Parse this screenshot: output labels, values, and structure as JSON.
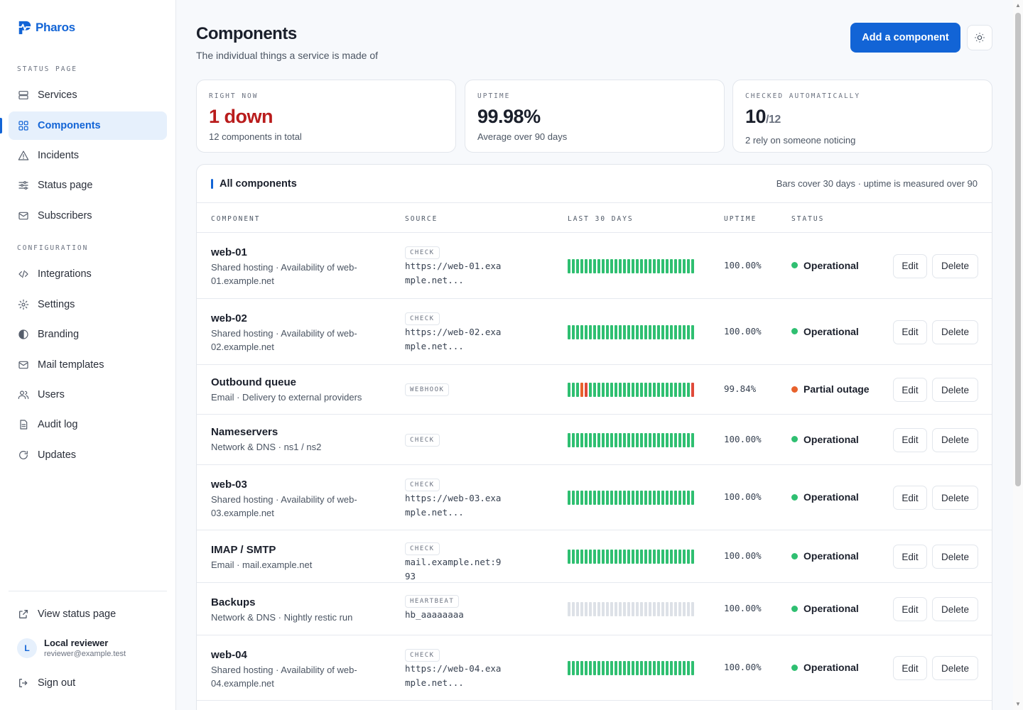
{
  "app": {
    "name": "Pharos"
  },
  "colors": {
    "accent": "#1264d6",
    "up": "#2fbf71",
    "degraded": "#e8622c",
    "down": "#e04a3a",
    "nodata": "#dde1e7"
  },
  "sidebar": {
    "section_status": "STATUS PAGE",
    "section_config": "CONFIGURATION",
    "items": [
      {
        "label": "Services",
        "icon": "server-icon"
      },
      {
        "label": "Components",
        "icon": "grid-icon",
        "active": true
      },
      {
        "label": "Incidents",
        "icon": "warning-icon"
      },
      {
        "label": "Status page",
        "icon": "sliders-icon"
      },
      {
        "label": "Subscribers",
        "icon": "mail-icon"
      }
    ],
    "config_items": [
      {
        "label": "Integrations",
        "icon": "code-icon"
      },
      {
        "label": "Settings",
        "icon": "gear-icon"
      },
      {
        "label": "Branding",
        "icon": "contrast-icon"
      },
      {
        "label": "Mail templates",
        "icon": "mail-icon"
      },
      {
        "label": "Users",
        "icon": "users-icon"
      },
      {
        "label": "Audit log",
        "icon": "document-icon"
      },
      {
        "label": "Updates",
        "icon": "refresh-icon"
      }
    ],
    "view_status": "View status page",
    "user": {
      "initial": "L",
      "name": "Local reviewer",
      "email": "reviewer@example.test"
    },
    "sign_out": "Sign out"
  },
  "header": {
    "title": "Components",
    "subtitle": "The individual things a service is made of",
    "add_button": "Add a component"
  },
  "stats": [
    {
      "label": "RIGHT NOW",
      "value": "1 down",
      "desc": "12 components in total"
    },
    {
      "label": "UPTIME",
      "value": "99.98%",
      "desc": "Average over 90 days"
    },
    {
      "label": "CHECKED AUTOMATICALLY",
      "value": "10",
      "value_suffix": "/12",
      "desc": "2 rely on someone noticing"
    }
  ],
  "table": {
    "title": "All components",
    "note": "Bars cover 30 days · uptime is measured over 90",
    "columns": [
      "COMPONENT",
      "SOURCE",
      "LAST 30 DAYS",
      "UPTIME",
      "STATUS"
    ],
    "edit_label": "Edit",
    "delete_label": "Delete",
    "rows": [
      {
        "name": "web-01",
        "desc": "Shared hosting · Availability of web-01.example.net",
        "badge": "CHECK",
        "source": "https://web-01.example.net...",
        "uptime": "100.00%",
        "status": "Operational",
        "status_color": "#2fbf71",
        "bars": "uuuuuuuuuuuuuuuuuuuuuuuuuuuuuu"
      },
      {
        "name": "web-02",
        "desc": "Shared hosting · Availability of web-02.example.net",
        "badge": "CHECK",
        "source": "https://web-02.example.net...",
        "uptime": "100.00%",
        "status": "Operational",
        "status_color": "#2fbf71",
        "bars": "uuuuuuuuuuuuuuuuuuuuuuuuuuuuuu"
      },
      {
        "name": "Outbound queue",
        "desc": "Email · Delivery to external providers",
        "badge": "WEBHOOK",
        "source": "",
        "uptime": "99.84%",
        "status": "Partial outage",
        "status_color": "#e8622c",
        "bars": "uuudruuuuuuuuuuuuuuuuuuuuuuuur"
      },
      {
        "name": "Nameservers",
        "desc": "Network & DNS · ns1 / ns2",
        "badge": "CHECK",
        "source": "",
        "uptime": "100.00%",
        "status": "Operational",
        "status_color": "#2fbf71",
        "bars": "uuuuuuuuuuuuuuuuuuuuuuuuuuuuuu"
      },
      {
        "name": "web-03",
        "desc": "Shared hosting · Availability of web-03.example.net",
        "badge": "CHECK",
        "source": "https://web-03.example.net...",
        "uptime": "100.00%",
        "status": "Operational",
        "status_color": "#2fbf71",
        "bars": "uuuuuuuuuuuuuuuuuuuuuuuuuuuuuu"
      },
      {
        "name": "IMAP / SMTP",
        "desc": "Email · mail.example.net",
        "badge": "CHECK",
        "source": "mail.example.net:993",
        "uptime": "100.00%",
        "status": "Operational",
        "status_color": "#2fbf71",
        "bars": "uuuuuuuuuuuuuuuuuuuuuuuuuuuuuu"
      },
      {
        "name": "Backups",
        "desc": "Network & DNS · Nightly restic run",
        "badge": "HEARTBEAT",
        "source": "hb_aaaaaaaa",
        "uptime": "100.00%",
        "status": "Operational",
        "status_color": "#2fbf71",
        "bars": "nnnnnnnnnnnnnnnnnnnnnnnnnnnnnn"
      },
      {
        "name": "web-04",
        "desc": "Shared hosting · Availability of web-04.example.net",
        "badge": "CHECK",
        "source": "https://web-04.example.net...",
        "uptime": "100.00%",
        "status": "Operational",
        "status_color": "#2fbf71",
        "bars": "uuuuuuuuuuuuuuuuuuuuuuuuuuuuuu"
      }
    ]
  }
}
